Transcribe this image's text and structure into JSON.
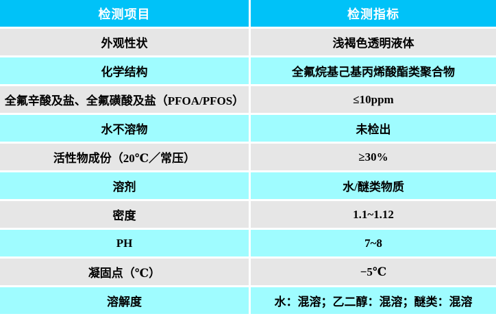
{
  "table": {
    "headers": [
      {
        "label": "检测项目"
      },
      {
        "label": "检测指标"
      }
    ],
    "rows": [
      {
        "item": "外观性状",
        "value": "浅褐色透明液体"
      },
      {
        "item": "化学结构",
        "value": "全氟烷基己基丙烯酸酯类聚合物"
      },
      {
        "item": "全氟辛酸及盐、全氟磺酸及盐（PFOA/PFOS）",
        "value": "≤10ppm"
      },
      {
        "item": "水不溶物",
        "value": "未检出"
      },
      {
        "item": "活性物成份（20℃／常压）",
        "value": "≥30%"
      },
      {
        "item": "溶剂",
        "value": "水/醚类物质"
      },
      {
        "item": "密度",
        "value": "1.1~1.12"
      },
      {
        "item": "PH",
        "value": "7~8"
      },
      {
        "item": "凝固点（℃）",
        "value": "−5℃"
      },
      {
        "item": "溶解度",
        "value": "水：混溶；乙二醇：混溶；醚类：混溶"
      }
    ],
    "colors": {
      "header_bg": "#00C2F8",
      "header_text": "#FFFFFF",
      "row_gray": "#E6E6E6",
      "row_cyan": "#9FFCFF",
      "gap": "#FFFFFF",
      "text": "#000000"
    }
  }
}
